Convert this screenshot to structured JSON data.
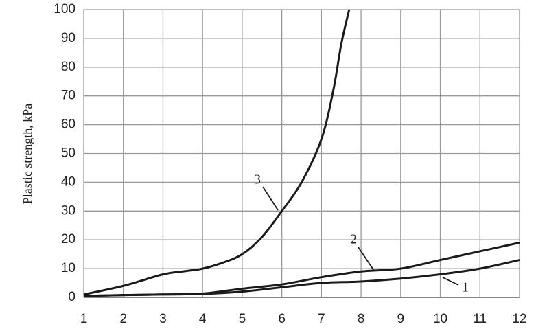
{
  "chart_data": {
    "type": "line",
    "ylabel": "Plastic strength, kPa",
    "xlim": [
      1,
      12
    ],
    "xticks": [
      1,
      2,
      3,
      4,
      5,
      6,
      7,
      8,
      9,
      10,
      11,
      12
    ],
    "ylim": [
      0,
      100
    ],
    "yticks": [
      0,
      10,
      20,
      30,
      40,
      50,
      60,
      70,
      80,
      90,
      100
    ],
    "grid": true,
    "series": [
      {
        "name": "1",
        "color": "#1a1a1a",
        "x": [
          1,
          2,
          3,
          4,
          5,
          6,
          7,
          8,
          9,
          10,
          11,
          12
        ],
        "values": [
          0.5,
          0.8,
          1,
          1.2,
          2,
          3.5,
          5,
          5.5,
          6.5,
          8,
          10,
          13
        ]
      },
      {
        "name": "2",
        "color": "#1a1a1a",
        "x": [
          1,
          2,
          3,
          4,
          5,
          6,
          7,
          8,
          9,
          10,
          11,
          12
        ],
        "values": [
          0.5,
          0.8,
          1,
          1.3,
          3,
          4.5,
          7,
          9,
          10,
          13,
          16,
          19
        ]
      },
      {
        "name": "3",
        "color": "#1a1a1a",
        "x": [
          1,
          2,
          3,
          3.5,
          4,
          4.5,
          5,
          5.5,
          6,
          6.5,
          7,
          7.3,
          7.5,
          7.7
        ],
        "values": [
          1,
          4,
          8,
          9,
          10,
          12,
          15,
          21,
          30,
          40,
          55,
          72,
          88,
          100
        ]
      }
    ]
  }
}
